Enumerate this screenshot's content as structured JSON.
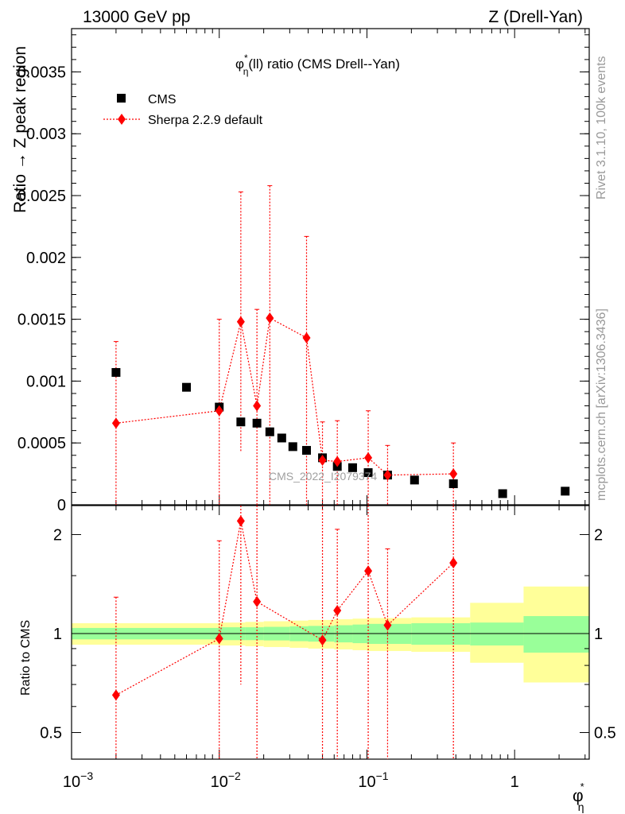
{
  "header": {
    "left": "13000 GeV pp",
    "right": "Z (Drell-Yan)"
  },
  "side_labels": {
    "rivet": "Rivet 3.1.10,  100k events",
    "mcplots": "mcplots.cern.ch [arXiv:1306.3436]"
  },
  "watermark": "CMS_2022_I2079374",
  "chart_data": [
    {
      "type": "scatter",
      "title_main": "φ",
      "title_sup": "*",
      "title_sub": "η",
      "title_rest": "(ll) ratio (CMS Drell--Yan)",
      "ylabel": "Ratio → Z peak region",
      "xlabel_main": "φ",
      "xlabel_sup": "*",
      "xlabel_sub": "η",
      "xscale": "log",
      "xlim": [
        0.001,
        3.2
      ],
      "ylim": [
        0,
        0.00385
      ],
      "x_ticks": [
        0.001,
        0.01,
        0.1,
        1
      ],
      "x_tick_labels": [
        {
          "base": "10",
          "exp": "−3"
        },
        {
          "base": "10",
          "exp": "−2"
        },
        {
          "base": "10",
          "exp": "−1"
        },
        {
          "base": "1",
          "exp": ""
        }
      ],
      "y_ticks": [
        0,
        0.0005,
        0.001,
        0.0015,
        0.002,
        0.0025,
        0.003,
        0.0035
      ],
      "y_tick_labels": [
        "0",
        "0.0005",
        "0.001",
        "0.0015",
        "0.002",
        "0.0025",
        "0.003",
        "0.0035"
      ],
      "legend": [
        {
          "name": "CMS",
          "marker": "square",
          "color": "#000000"
        },
        {
          "name": "Sherpa 2.2.9 default",
          "marker": "diamond",
          "color": "#ff0000"
        }
      ],
      "series": [
        {
          "name": "CMS",
          "x": [
            0.002,
            0.006,
            0.01,
            0.014,
            0.018,
            0.022,
            0.0265,
            0.0315,
            0.039,
            0.05,
            0.063,
            0.08,
            0.102,
            0.138,
            0.21,
            0.385,
            0.83,
            2.2
          ],
          "y": [
            0.00107,
            0.00095,
            0.00079,
            0.00067,
            0.00066,
            0.00059,
            0.00054,
            0.00047,
            0.00044,
            0.00038,
            0.00031,
            0.0003,
            0.00026,
            0.00024,
            0.0002,
            0.00017,
            9e-05,
            0.00011
          ]
        },
        {
          "name": "Sherpa 2.2.9 default",
          "x": [
            0.002,
            0.01,
            0.014,
            0.018,
            0.022,
            0.039,
            0.05,
            0.063,
            0.102,
            0.138,
            0.385
          ],
          "y": [
            0.00066,
            0.00076,
            0.00148,
            0.0008,
            0.00151,
            0.00135,
            0.00036,
            0.00035,
            0.00038,
            0.00024,
            0.00025
          ],
          "err_up": [
            0.00066,
            0.00074,
            0.00105,
            0.00078,
            0.00107,
            0.00082,
            0.00031,
            0.00033,
            0.00038,
            0.00024,
            0.00025
          ],
          "err_down": [
            0.00066,
            0.00076,
            0.00105,
            0.0008,
            0.00151,
            0.00135,
            0.00036,
            0.00035,
            0.00038,
            0.00024,
            0.00025
          ]
        }
      ]
    },
    {
      "type": "scatter",
      "ylabel": "Ratio to CMS",
      "xscale": "log",
      "yscale": "log",
      "xlim": [
        0.001,
        3.2
      ],
      "ylim": [
        0.415,
        2.45
      ],
      "y_ticks": [
        0.5,
        1,
        2
      ],
      "y_tick_labels": [
        "0.5",
        "1",
        "2"
      ],
      "bands": {
        "edges": [
          0.001,
          0.01,
          0.015,
          0.02,
          0.03,
          0.04,
          0.06,
          0.08,
          0.1,
          0.2,
          0.5,
          1.15,
          3.2
        ],
        "inner_low": [
          0.96,
          0.955,
          0.955,
          0.953,
          0.948,
          0.945,
          0.94,
          0.935,
          0.93,
          0.925,
          0.92,
          0.875
        ],
        "inner_high": [
          1.04,
          1.045,
          1.045,
          1.048,
          1.052,
          1.055,
          1.06,
          1.065,
          1.07,
          1.075,
          1.08,
          1.13
        ],
        "outer_low": [
          0.925,
          0.92,
          0.915,
          0.91,
          0.905,
          0.9,
          0.895,
          0.89,
          0.885,
          0.88,
          0.815,
          0.71
        ],
        "outer_high": [
          1.075,
          1.08,
          1.085,
          1.09,
          1.095,
          1.1,
          1.105,
          1.11,
          1.115,
          1.12,
          1.24,
          1.39
        ],
        "inner_color": "#99ff99",
        "outer_color": "#ffff99"
      },
      "series": [
        {
          "name": "Sherpa 2.2.9 default",
          "x": [
            0.002,
            0.01,
            0.014,
            0.018,
            0.05,
            0.063,
            0.102,
            0.138,
            0.385
          ],
          "y": [
            0.65,
            0.965,
            2.2,
            1.25,
            0.955,
            1.175,
            1.55,
            1.06,
            1.64
          ],
          "err_up": [
            0.64,
            0.95,
            1.05,
            1.5,
            2.0,
            0.9,
            1.3,
            0.75,
            1.2
          ],
          "err_down": [
            0.65,
            0.965,
            1.5,
            1.25,
            0.955,
            1.175,
            1.55,
            1.06,
            1.64
          ]
        }
      ]
    }
  ]
}
